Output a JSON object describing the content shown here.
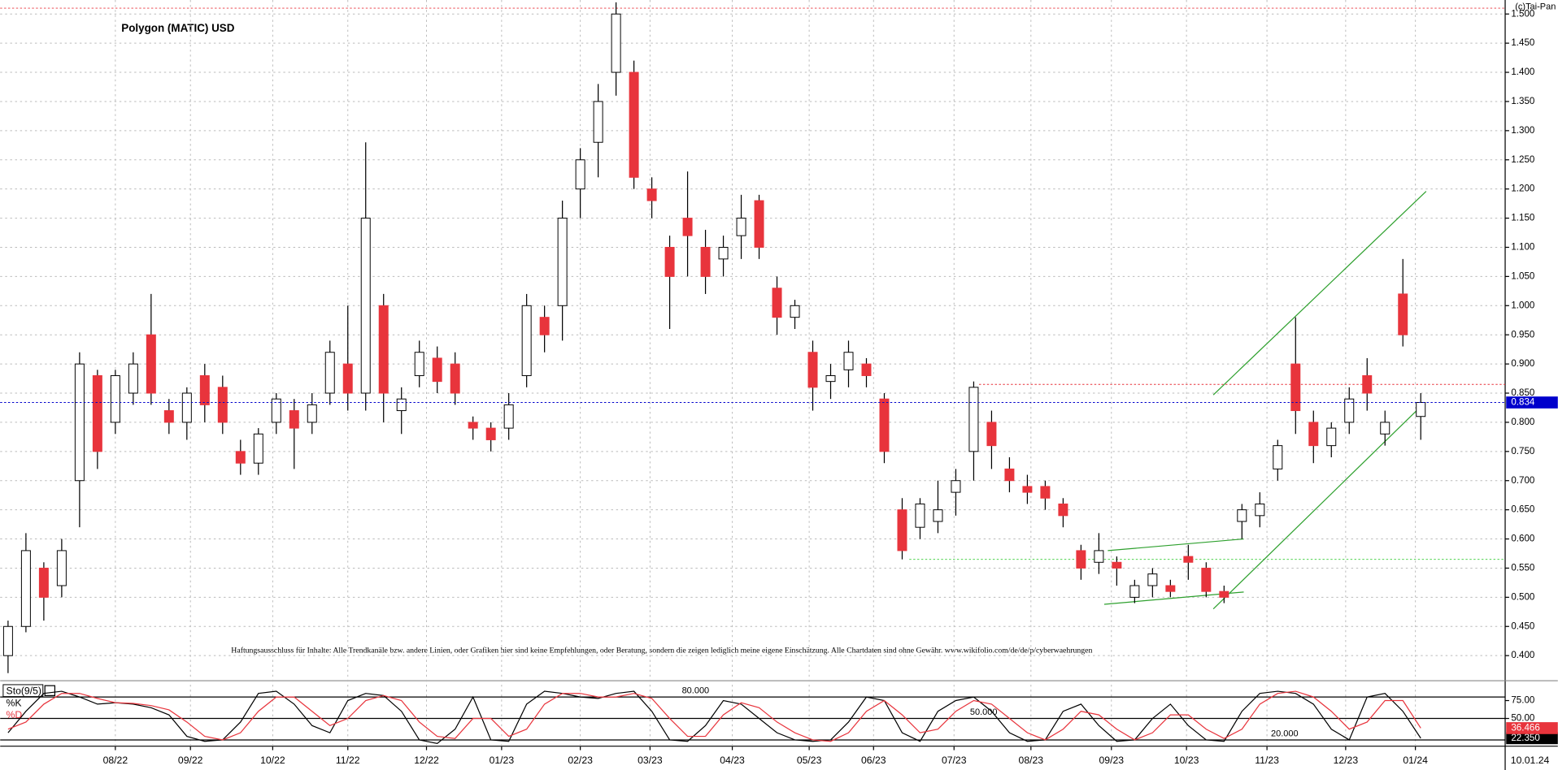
{
  "chart_data": {
    "type": "candlestick",
    "title": "Polygon (MATIC) USD",
    "copyright": "(c)Tai-Pan",
    "disclaimer": "Haftungsausschluss für Inhalte: Alle Trendkanäle bzw. andere Linien, oder Grafiken hier sind keine Empfehlungen, oder Beratung, sondern die zeigen lediglich meine eigene Einschätzung. Alle Chartdaten sind ohne Gewähr.  www.wikifolio.com/de/de/p/cyberwaehrungen",
    "last_date": "10.01.24",
    "up_color": "#ffffff",
    "down_color": "#e8343c",
    "wick_color": "#000000",
    "x": [
      0,
      1,
      2,
      3,
      4,
      5,
      6,
      7,
      8,
      9,
      10,
      11,
      12,
      13,
      14,
      15,
      16,
      17,
      18,
      19,
      20,
      21,
      22,
      23,
      24,
      25,
      26,
      27,
      28,
      29,
      30,
      31,
      32,
      33,
      34,
      35,
      36,
      37,
      38,
      39,
      40,
      41,
      42,
      43,
      44,
      45,
      46,
      47,
      48,
      49,
      50,
      51,
      52,
      53,
      54,
      55,
      56,
      57,
      58,
      59,
      60,
      61,
      62,
      63,
      64,
      65,
      66,
      67,
      68,
      69,
      70,
      71,
      72,
      73,
      74,
      75,
      76,
      77,
      78,
      79
    ],
    "open": [
      0.4,
      0.45,
      0.55,
      0.52,
      0.7,
      0.88,
      0.8,
      0.85,
      0.95,
      0.82,
      0.8,
      0.88,
      0.86,
      0.75,
      0.73,
      0.8,
      0.82,
      0.8,
      0.85,
      0.9,
      0.85,
      1.0,
      0.82,
      0.88,
      0.91,
      0.9,
      0.8,
      0.79,
      0.79,
      0.88,
      0.98,
      1.0,
      1.2,
      1.28,
      1.4,
      1.4,
      1.2,
      1.1,
      1.15,
      1.1,
      1.08,
      1.12,
      1.18,
      1.03,
      0.98,
      0.92,
      0.87,
      0.89,
      0.9,
      0.84,
      0.65,
      0.62,
      0.63,
      0.68,
      0.75,
      0.8,
      0.72,
      0.69,
      0.69,
      0.66,
      0.58,
      0.56,
      0.56,
      0.5,
      0.52,
      0.52,
      0.57,
      0.55,
      0.51,
      0.63,
      0.64,
      0.72,
      0.9,
      0.8,
      0.76,
      0.8,
      0.88,
      0.78,
      1.02,
      0.81
    ],
    "high": [
      0.46,
      0.61,
      0.56,
      0.6,
      0.92,
      0.89,
      0.89,
      0.92,
      1.02,
      0.84,
      0.86,
      0.9,
      0.88,
      0.77,
      0.79,
      0.85,
      0.84,
      0.85,
      0.94,
      1.0,
      1.28,
      1.02,
      0.86,
      0.94,
      0.93,
      0.92,
      0.81,
      0.8,
      0.85,
      1.02,
      1.0,
      1.18,
      1.27,
      1.38,
      1.52,
      1.42,
      1.22,
      1.12,
      1.23,
      1.13,
      1.12,
      1.19,
      1.19,
      1.05,
      1.01,
      0.94,
      0.9,
      0.94,
      0.91,
      0.85,
      0.67,
      0.67,
      0.7,
      0.72,
      0.87,
      0.82,
      0.74,
      0.71,
      0.7,
      0.67,
      0.59,
      0.61,
      0.57,
      0.53,
      0.55,
      0.53,
      0.59,
      0.56,
      0.52,
      0.66,
      0.68,
      0.77,
      0.98,
      0.82,
      0.8,
      0.86,
      0.91,
      0.82,
      1.08,
      0.85
    ],
    "low": [
      0.37,
      0.44,
      0.46,
      0.5,
      0.62,
      0.72,
      0.78,
      0.83,
      0.83,
      0.78,
      0.77,
      0.8,
      0.78,
      0.71,
      0.71,
      0.78,
      0.72,
      0.78,
      0.83,
      0.82,
      0.82,
      0.8,
      0.78,
      0.86,
      0.85,
      0.83,
      0.77,
      0.75,
      0.77,
      0.86,
      0.92,
      0.94,
      1.15,
      1.22,
      1.36,
      1.2,
      1.15,
      0.96,
      1.05,
      1.02,
      1.05,
      1.08,
      1.08,
      0.95,
      0.96,
      0.82,
      0.84,
      0.86,
      0.86,
      0.73,
      0.565,
      0.6,
      0.61,
      0.64,
      0.7,
      0.72,
      0.68,
      0.66,
      0.65,
      0.62,
      0.53,
      0.54,
      0.52,
      0.49,
      0.5,
      0.5,
      0.53,
      0.5,
      0.49,
      0.6,
      0.62,
      0.7,
      0.78,
      0.73,
      0.74,
      0.78,
      0.82,
      0.76,
      0.93,
      0.77
    ],
    "close": [
      0.45,
      0.58,
      0.5,
      0.58,
      0.9,
      0.75,
      0.88,
      0.9,
      0.85,
      0.8,
      0.85,
      0.83,
      0.8,
      0.73,
      0.78,
      0.84,
      0.79,
      0.83,
      0.92,
      0.85,
      1.15,
      0.85,
      0.84,
      0.92,
      0.87,
      0.85,
      0.79,
      0.77,
      0.83,
      1.0,
      0.95,
      1.15,
      1.25,
      1.35,
      1.5,
      1.22,
      1.18,
      1.05,
      1.12,
      1.05,
      1.1,
      1.15,
      1.1,
      0.98,
      1.0,
      0.86,
      0.88,
      0.92,
      0.88,
      0.75,
      0.58,
      0.66,
      0.65,
      0.7,
      0.86,
      0.76,
      0.7,
      0.68,
      0.67,
      0.64,
      0.55,
      0.58,
      0.55,
      0.52,
      0.54,
      0.51,
      0.56,
      0.51,
      0.5,
      0.65,
      0.66,
      0.76,
      0.82,
      0.76,
      0.79,
      0.84,
      0.85,
      0.8,
      0.95,
      0.834
    ],
    "xlim": [
      -0.44,
      83.72
    ],
    "xticks": [
      {
        "value": 6,
        "label": "08/22"
      },
      {
        "value": 10.2,
        "label": "09/22"
      },
      {
        "value": 14.8,
        "label": "10/22"
      },
      {
        "value": 19,
        "label": "11/22"
      },
      {
        "value": 23.4,
        "label": "12/22"
      },
      {
        "value": 27.6,
        "label": "01/23"
      },
      {
        "value": 32,
        "label": "02/23"
      },
      {
        "value": 35.9,
        "label": "03/23"
      },
      {
        "value": 40.5,
        "label": "04/23"
      },
      {
        "value": 44.8,
        "label": "05/23"
      },
      {
        "value": 48.4,
        "label": "06/23"
      },
      {
        "value": 52.9,
        "label": "07/23"
      },
      {
        "value": 57.2,
        "label": "08/23"
      },
      {
        "value": 61.7,
        "label": "09/23"
      },
      {
        "value": 65.9,
        "label": "10/23"
      },
      {
        "value": 70.4,
        "label": "11/23"
      },
      {
        "value": 74.8,
        "label": "12/23"
      },
      {
        "value": 78.7,
        "label": "01/24"
      }
    ],
    "ylim": [
      0.357,
      1.524
    ],
    "yticks": [
      {
        "value": 0.4,
        "label": "0.400"
      },
      {
        "value": 0.45,
        "label": "0.450"
      },
      {
        "value": 0.5,
        "label": "0.500"
      },
      {
        "value": 0.55,
        "label": "0.550"
      },
      {
        "value": 0.6,
        "label": "0.600"
      },
      {
        "value": 0.65,
        "label": "0.650"
      },
      {
        "value": 0.7,
        "label": "0.700"
      },
      {
        "value": 0.75,
        "label": "0.750"
      },
      {
        "value": 0.8,
        "label": "0.800"
      },
      {
        "value": 0.85,
        "label": "0.850"
      },
      {
        "value": 0.9,
        "label": "0.900"
      },
      {
        "value": 0.95,
        "label": "0.950"
      },
      {
        "value": 1.0,
        "label": "1.000"
      },
      {
        "value": 1.05,
        "label": "1.050"
      },
      {
        "value": 1.1,
        "label": "1.100"
      },
      {
        "value": 1.15,
        "label": "1.150"
      },
      {
        "value": 1.2,
        "label": "1.200"
      },
      {
        "value": 1.25,
        "label": "1.250"
      },
      {
        "value": 1.3,
        "label": "1.300"
      },
      {
        "value": 1.35,
        "label": "1.350"
      },
      {
        "value": 1.4,
        "label": "1.400"
      },
      {
        "value": 1.45,
        "label": "1.450"
      },
      {
        "value": 1.5,
        "label": "1.500"
      }
    ],
    "grid": true,
    "current_price": {
      "value": 0.834,
      "label": "0.834",
      "color": "#0000cc"
    },
    "levels": [
      {
        "value": 1.51,
        "x_from": -0.44,
        "color": "#e8343c"
      },
      {
        "value": 0.865,
        "x_from": 54.3,
        "color": "#e8343c"
      },
      {
        "value": 0.565,
        "x_from": 50.4,
        "color": "#33cc33"
      }
    ],
    "trendlines": [
      {
        "x": [
          67.4,
          79.3
        ],
        "y": [
          0.847,
          1.196
        ],
        "color": "#2ea02e"
      },
      {
        "x": [
          67.4,
          79.0
        ],
        "y": [
          0.48,
          0.827
        ],
        "color": "#2ea02e"
      },
      {
        "x": [
          61.5,
          69.1
        ],
        "y": [
          0.58,
          0.6
        ],
        "color": "#2ea02e"
      },
      {
        "x": [
          61.3,
          69.1
        ],
        "y": [
          0.488,
          0.509
        ],
        "color": "#2ea02e"
      }
    ],
    "stochastic": {
      "name": "Sto(9/5)",
      "ylim": [
        14,
        100
      ],
      "yticks": [
        {
          "value": 75,
          "label": "75.00"
        },
        {
          "value": 50,
          "label": "50.00"
        }
      ],
      "levels": [
        {
          "value": 80,
          "label": "80.000"
        },
        {
          "value": 50,
          "label": "50.000"
        },
        {
          "value": 20,
          "label": "20.000"
        }
      ],
      "series": [
        {
          "name": "%K",
          "color": "#000000",
          "last_label": "22.350",
          "values": [
            30,
            60,
            85,
            88,
            80,
            70,
            72,
            70,
            65,
            55,
            25,
            18,
            20,
            45,
            85,
            88,
            70,
            40,
            30,
            75,
            85,
            82,
            60,
            20,
            15,
            35,
            80,
            20,
            18,
            70,
            88,
            85,
            80,
            78,
            85,
            88,
            60,
            20,
            18,
            40,
            75,
            70,
            50,
            30,
            20,
            18,
            20,
            45,
            80,
            75,
            30,
            18,
            60,
            75,
            80,
            60,
            30,
            18,
            20,
            60,
            70,
            40,
            18,
            20,
            50,
            70,
            40,
            20,
            18,
            60,
            85,
            88,
            85,
            70,
            35,
            20,
            80,
            85,
            60,
            22.35
          ]
        },
        {
          "name": "%D",
          "color": "#e8343c",
          "last_label": "36.466",
          "values": [
            35,
            45,
            70,
            85,
            85,
            78,
            72,
            71,
            68,
            62,
            45,
            25,
            20,
            30,
            60,
            80,
            80,
            60,
            40,
            50,
            75,
            82,
            75,
            45,
            25,
            22,
            50,
            50,
            25,
            35,
            70,
            85,
            85,
            80,
            80,
            85,
            78,
            50,
            25,
            25,
            55,
            72,
            65,
            45,
            30,
            20,
            18,
            30,
            60,
            75,
            55,
            30,
            35,
            60,
            75,
            70,
            50,
            30,
            20,
            35,
            60,
            55,
            35,
            20,
            30,
            55,
            55,
            35,
            22,
            35,
            70,
            85,
            88,
            80,
            60,
            35,
            45,
            75,
            75,
            36.466
          ]
        }
      ]
    }
  }
}
